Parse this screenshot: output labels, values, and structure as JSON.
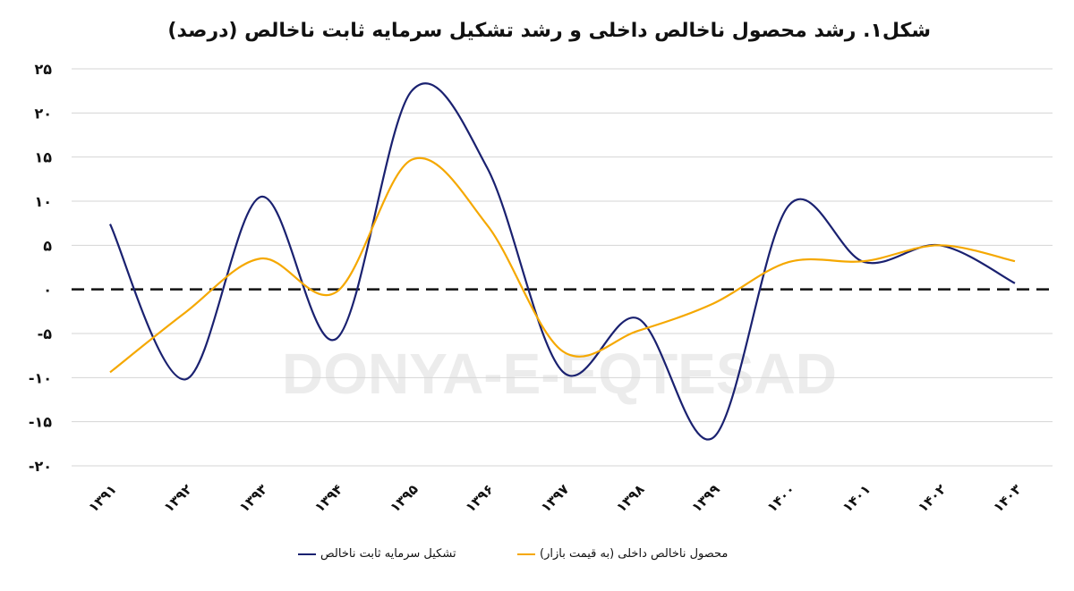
{
  "chart_data": {
    "type": "line",
    "title": "شکل۱. رشد محصول ناخالص داخلی و رشد تشکیل سرمایه ثابت ناخالص (درصد)",
    "xlabel": "",
    "ylabel": "",
    "ylim": [
      -20,
      25
    ],
    "yticks": [
      25,
      20,
      15,
      10,
      5,
      0,
      -5,
      -10,
      -15,
      -20
    ],
    "ytick_labels": [
      "۲۵",
      "۲۰",
      "۱۵",
      "۱۰",
      "۵",
      "۰",
      "-۵",
      "-۱۰",
      "-۱۵",
      "-۲۰"
    ],
    "categories": [
      "۱۳۹۱",
      "۱۳۹۲",
      "۱۳۹۳",
      "۱۳۹۴",
      "۱۳۹۵",
      "۱۳۹۶",
      "۱۳۹۷",
      "۱۳۹۸",
      "۱۳۹۹",
      "۱۴۰۰",
      "۱۴۰۱",
      "۱۴۰۲",
      "۱۴۰۳"
    ],
    "grid": true,
    "zero_line": "dashed",
    "smooth": true,
    "legend_position": "bottom",
    "series": [
      {
        "name": "تشکیل سرمایه ثابت ناخالص",
        "color": "#1a2170",
        "values": [
          7.4,
          -10.2,
          10.5,
          -5.6,
          22.5,
          13.8,
          -9.3,
          -3.3,
          -16.8,
          9.5,
          3.1,
          5.0,
          0.7
        ]
      },
      {
        "name": "محصول ناخالص داخلی (به قیمت بازار)",
        "color": "#f5a800",
        "values": [
          -9.4,
          -2.6,
          3.5,
          -0.3,
          14.7,
          7.3,
          -7.0,
          -4.7,
          -1.6,
          3.1,
          3.2,
          5.0,
          3.2
        ]
      }
    ]
  },
  "watermark": "DONYA-E-EQTESAD"
}
